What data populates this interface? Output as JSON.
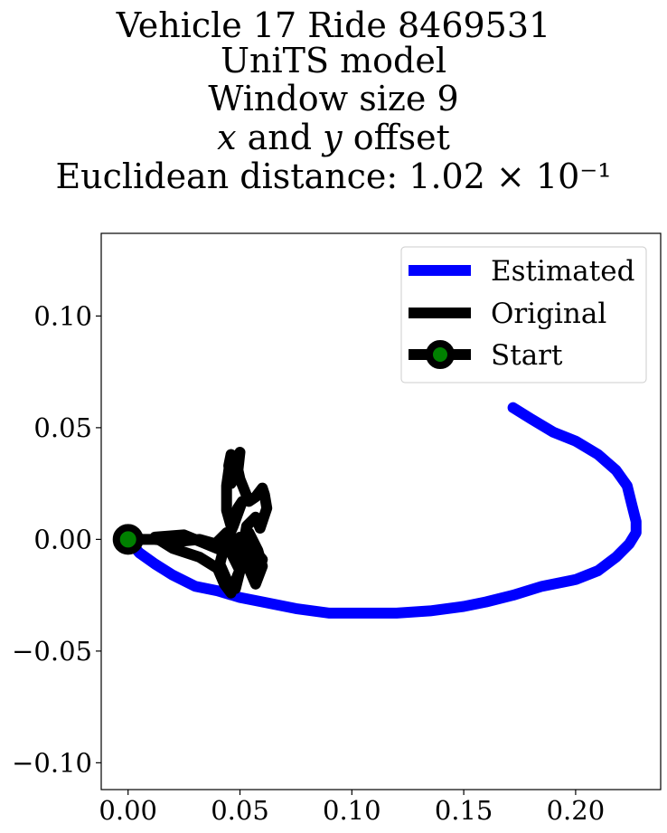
{
  "title_lines": [
    "Vehicle 17 Ride 8469531",
    "UniTS model",
    "Window size 9",
    "𝑥 and 𝑦 offset",
    "Euclidean distance: 1.02 × 10⁻¹"
  ],
  "chart_data": {
    "type": "line",
    "title": "Vehicle 17 Ride 8469531 / UniTS model / Window size 9 / x and y offset / Euclidean distance: 1.02×10^-1",
    "xlabel": "",
    "ylabel": "",
    "xlim": [
      -0.012,
      0.238
    ],
    "ylim": [
      -0.112,
      0.137
    ],
    "grid": false,
    "legend_position": "top-right",
    "x_ticks": [
      0.0,
      0.05,
      0.1,
      0.15,
      0.2
    ],
    "x_tick_labels": [
      "0.00",
      "0.05",
      "0.10",
      "0.15",
      "0.20"
    ],
    "y_ticks": [
      -0.1,
      -0.05,
      0.0,
      0.05,
      0.1
    ],
    "y_tick_labels": [
      "−0.10",
      "−0.05",
      "0.00",
      "0.05",
      "0.10"
    ],
    "series": [
      {
        "name": "Estimated",
        "color": "#0000ff",
        "points": [
          [
            0.0,
            0.0
          ],
          [
            0.005,
            -0.006
          ],
          [
            0.012,
            -0.011
          ],
          [
            0.02,
            -0.016
          ],
          [
            0.03,
            -0.021
          ],
          [
            0.04,
            -0.023
          ],
          [
            0.05,
            -0.026
          ],
          [
            0.06,
            -0.028
          ],
          [
            0.075,
            -0.031
          ],
          [
            0.09,
            -0.033
          ],
          [
            0.105,
            -0.033
          ],
          [
            0.12,
            -0.033
          ],
          [
            0.135,
            -0.032
          ],
          [
            0.15,
            -0.03
          ],
          [
            0.16,
            -0.028
          ],
          [
            0.172,
            -0.025
          ],
          [
            0.185,
            -0.021
          ],
          [
            0.2,
            -0.018
          ],
          [
            0.21,
            -0.014
          ],
          [
            0.218,
            -0.008
          ],
          [
            0.224,
            -0.002
          ],
          [
            0.227,
            0.003
          ],
          [
            0.227,
            0.008
          ],
          [
            0.225,
            0.016
          ],
          [
            0.223,
            0.024
          ],
          [
            0.218,
            0.031
          ],
          [
            0.21,
            0.038
          ],
          [
            0.2,
            0.044
          ],
          [
            0.19,
            0.048
          ],
          [
            0.18,
            0.054
          ],
          [
            0.172,
            0.059
          ]
        ]
      },
      {
        "name": "Original",
        "color": "#000000",
        "points": [
          [
            0.0,
            0.0
          ],
          [
            0.012,
            0.0
          ],
          [
            0.022,
            -0.001
          ],
          [
            0.032,
            0.0
          ],
          [
            0.039,
            -0.002
          ],
          [
            0.044,
            0.003
          ],
          [
            0.046,
            0.0
          ],
          [
            0.042,
            -0.005
          ],
          [
            0.025,
            0.002
          ],
          [
            0.012,
            0.001
          ],
          [
            0.02,
            -0.004
          ],
          [
            0.032,
            -0.008
          ],
          [
            0.04,
            -0.013
          ],
          [
            0.043,
            -0.02
          ],
          [
            0.046,
            -0.024
          ],
          [
            0.049,
            -0.016
          ],
          [
            0.052,
            -0.009
          ],
          [
            0.05,
            -0.004
          ],
          [
            0.054,
            0.003
          ],
          [
            0.058,
            -0.005
          ],
          [
            0.06,
            -0.012
          ],
          [
            0.057,
            -0.02
          ],
          [
            0.054,
            -0.013
          ],
          [
            0.051,
            -0.006
          ],
          [
            0.053,
            0.006
          ],
          [
            0.057,
            0.01
          ],
          [
            0.059,
            0.005
          ],
          [
            0.062,
            0.014
          ],
          [
            0.061,
            0.02
          ],
          [
            0.06,
            0.023
          ],
          [
            0.057,
            0.019
          ],
          [
            0.054,
            0.017
          ],
          [
            0.05,
            0.027
          ],
          [
            0.048,
            0.036
          ],
          [
            0.05,
            0.039
          ],
          [
            0.049,
            0.03
          ],
          [
            0.046,
            0.025
          ],
          [
            0.045,
            0.033
          ],
          [
            0.046,
            0.038
          ],
          [
            0.044,
            0.024
          ],
          [
            0.044,
            0.013
          ],
          [
            0.046,
            0.006
          ],
          [
            0.049,
            0.014
          ],
          [
            0.051,
            0.017
          ],
          [
            0.047,
            0.006
          ],
          [
            0.043,
            -0.003
          ],
          [
            0.041,
            -0.011
          ],
          [
            0.044,
            -0.018
          ],
          [
            0.048,
            -0.022
          ],
          [
            0.05,
            -0.014
          ],
          [
            0.046,
            -0.006
          ],
          [
            0.05,
            0.001
          ],
          [
            0.055,
            -0.007
          ],
          [
            0.058,
            -0.016
          ],
          [
            0.06,
            -0.009
          ],
          [
            0.055,
            -0.003
          ]
        ]
      }
    ],
    "start": {
      "name": "Start",
      "x": 0.0,
      "y": 0.0,
      "edge_color": "#000000",
      "fill_color": "#008000"
    },
    "legend": [
      "Estimated",
      "Original",
      "Start"
    ]
  }
}
